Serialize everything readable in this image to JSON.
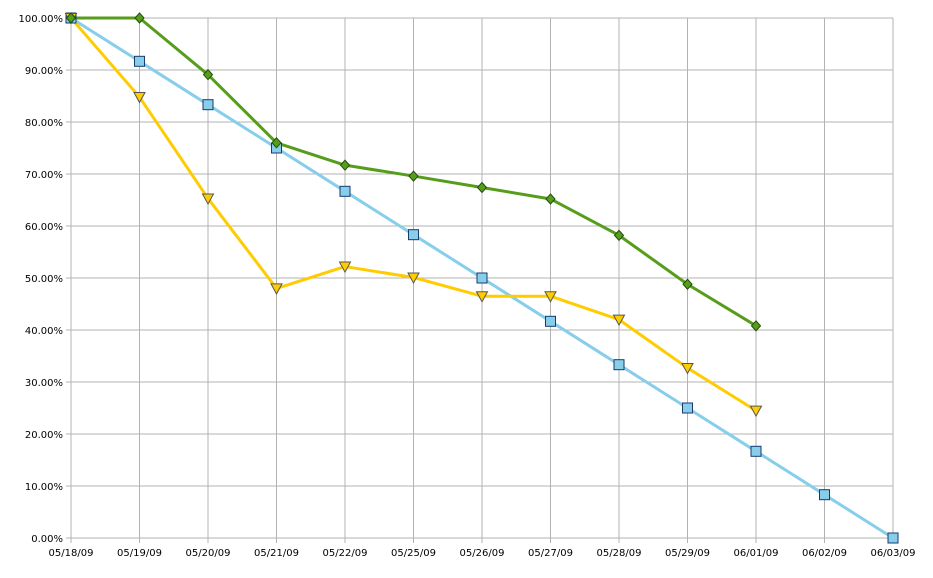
{
  "chart_data": {
    "type": "line",
    "title": "",
    "xlabel": "",
    "ylabel": "",
    "categories": [
      "05/18/09",
      "05/19/09",
      "05/20/09",
      "05/21/09",
      "05/22/09",
      "05/25/09",
      "05/26/09",
      "05/27/09",
      "05/28/09",
      "05/29/09",
      "06/01/09",
      "06/02/09",
      "06/03/09"
    ],
    "y_ticks": [
      "0.00%",
      "10.00%",
      "20.00%",
      "30.00%",
      "40.00%",
      "50.00%",
      "60.00%",
      "70.00%",
      "80.00%",
      "90.00%",
      "100.00%"
    ],
    "ylim": [
      0,
      100
    ],
    "grid": true,
    "legend": "none",
    "series": [
      {
        "color": "#87ceeb",
        "marker": "square",
        "values": [
          100,
          91.67,
          83.33,
          75,
          66.67,
          58.33,
          50,
          41.67,
          33.33,
          25,
          16.67,
          8.33,
          0
        ]
      },
      {
        "color": "#ffcc00",
        "marker": "triangle-down",
        "values": [
          100,
          84.8,
          65.3,
          48,
          52.2,
          50.1,
          46.5,
          46.5,
          42,
          32.7,
          24.5,
          null,
          null
        ]
      },
      {
        "color": "#579d1c",
        "marker": "diamond",
        "values": [
          100,
          100,
          89.1,
          76,
          71.7,
          69.6,
          67.4,
          65.2,
          58.2,
          48.8,
          40.8,
          null,
          null
        ]
      }
    ]
  }
}
